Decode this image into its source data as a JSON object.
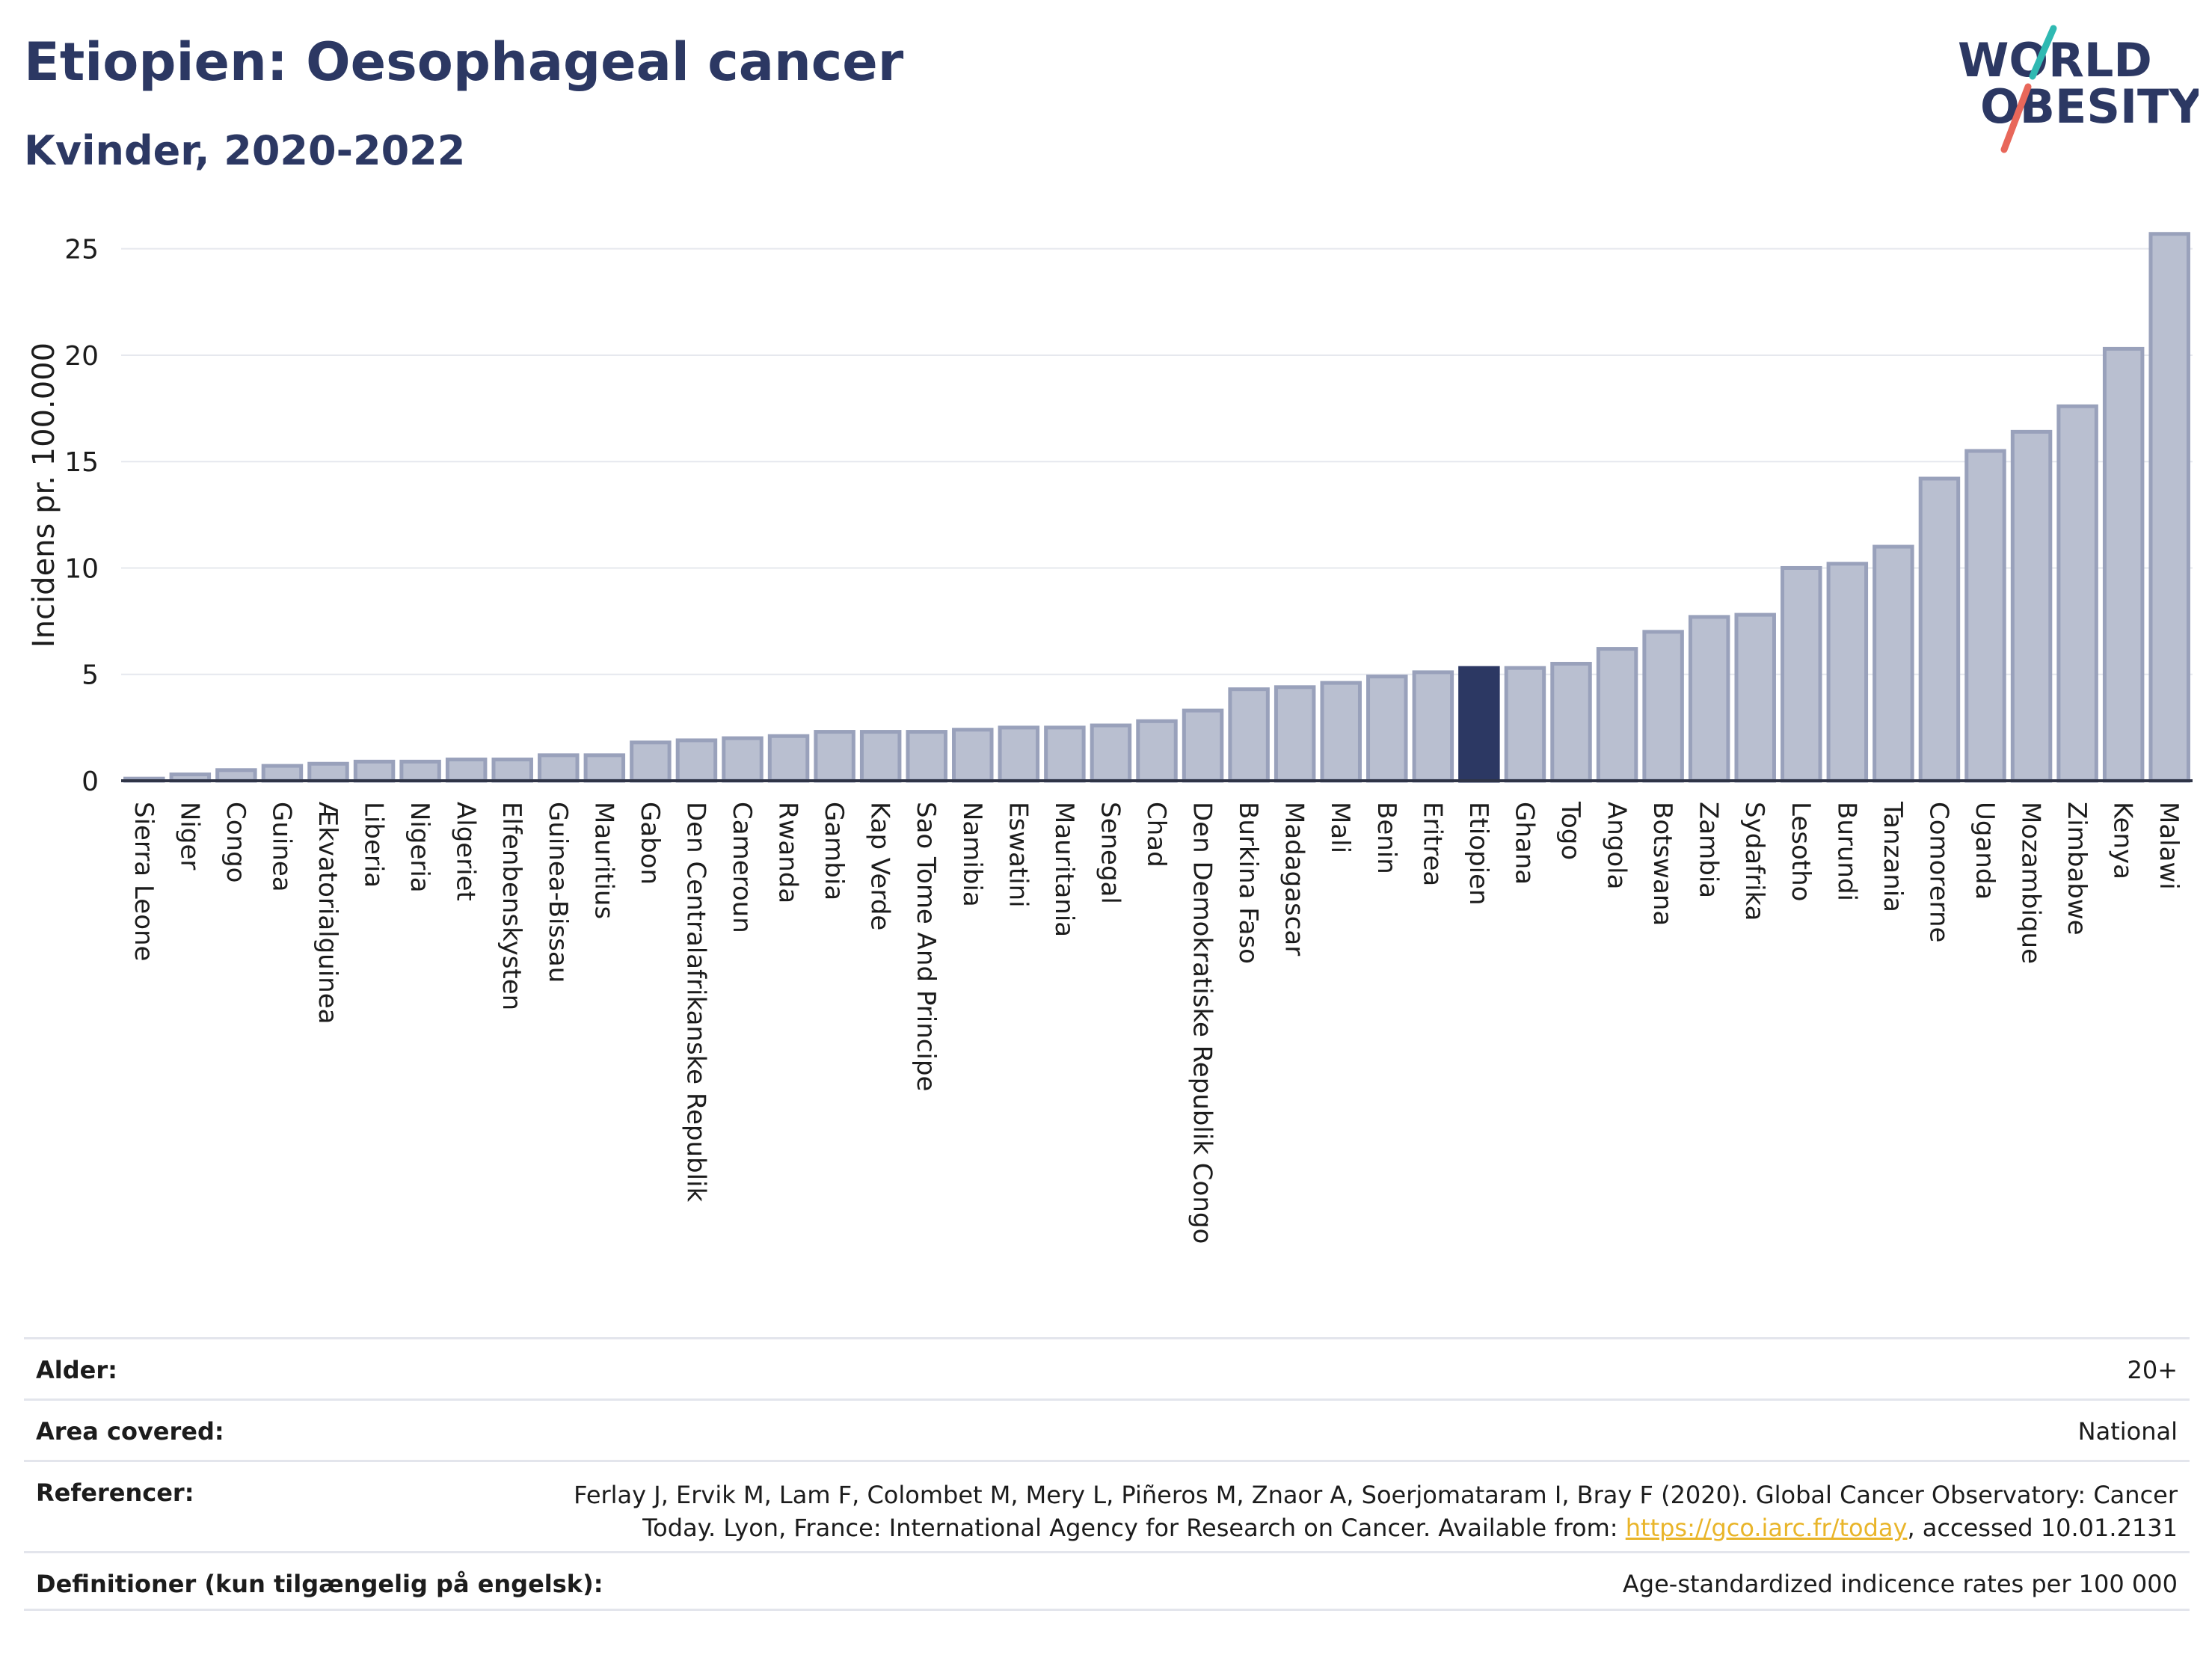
{
  "header": {
    "title": "Etiopien: Oesophageal cancer",
    "subtitle": "Kvinder, 2020-2022"
  },
  "logo": {
    "line1": "WORLD",
    "line2": "OBESITY"
  },
  "colors": {
    "bar": "#b9bfd0",
    "bar_stroke": "#99a1bb",
    "highlight": "#2c3863",
    "text": "#1c1c1c",
    "grid": "#e6e8ee",
    "logo_teal": "#2fb9b2",
    "logo_coral": "#e8675a"
  },
  "chart_data": {
    "type": "bar",
    "ylabel": "Incidens pr. 100.000",
    "ylim": [
      0,
      26.5
    ],
    "yticks": [
      0,
      5,
      10,
      15,
      20,
      25
    ],
    "highlight": "Etiopien",
    "grid": true,
    "categories": [
      "Sierra Leone",
      "Niger",
      "Congo",
      "Guinea",
      "Ækvatorialguinea",
      "Liberia",
      "Nigeria",
      "Algeriet",
      "Elfenbenskysten",
      "Guinea-Bissau",
      "Mauritius",
      "Gabon",
      "Den Centralafrikanske Republik",
      "Cameroun",
      "Rwanda",
      "Gambia",
      "Kap Verde",
      "Sao Tome And Principe",
      "Namibia",
      "Eswatini",
      "Mauritania",
      "Senegal",
      "Chad",
      "Den Demokratiske Republik Congo",
      "Burkina Faso",
      "Madagascar",
      "Mali",
      "Benin",
      "Eritrea",
      "Etiopien",
      "Ghana",
      "Togo",
      "Angola",
      "Botswana",
      "Zambia",
      "Sydafrika",
      "Lesotho",
      "Burundi",
      "Tanzania",
      "Comorerne",
      "Uganda",
      "Mozambique",
      "Zimbabwe",
      "Kenya",
      "Malawi"
    ],
    "values": [
      0.1,
      0.3,
      0.5,
      0.7,
      0.8,
      0.9,
      0.9,
      1.0,
      1.0,
      1.2,
      1.2,
      1.8,
      1.9,
      2.0,
      2.1,
      2.3,
      2.3,
      2.3,
      2.4,
      2.5,
      2.5,
      2.6,
      2.8,
      3.3,
      4.3,
      4.4,
      4.6,
      4.9,
      5.1,
      5.3,
      5.3,
      5.5,
      6.2,
      7.0,
      7.7,
      7.8,
      10.0,
      10.2,
      11.0,
      14.2,
      15.5,
      16.4,
      17.6,
      20.3,
      25.7
    ]
  },
  "footer": {
    "rows": [
      {
        "label": "Alder:",
        "value": "20+"
      },
      {
        "label": "Area covered:",
        "value": "National"
      },
      {
        "label": "Referencer:",
        "value_pre": "Ferlay J, Ervik M, Lam F, Colombet M, Mery L, Piñeros M, Znaor A, Soerjomataram I, Bray F (2020). Global Cancer Observatory: Cancer Today. Lyon, France: International Agency for Research on Cancer. Available from: ",
        "link": "https://gco.iarc.fr/today",
        "value_post": ", accessed 10.01.2131"
      },
      {
        "label": "Definitioner (kun tilgængelig på engelsk):",
        "value": "Age-standardized indicence rates per 100 000"
      }
    ]
  }
}
